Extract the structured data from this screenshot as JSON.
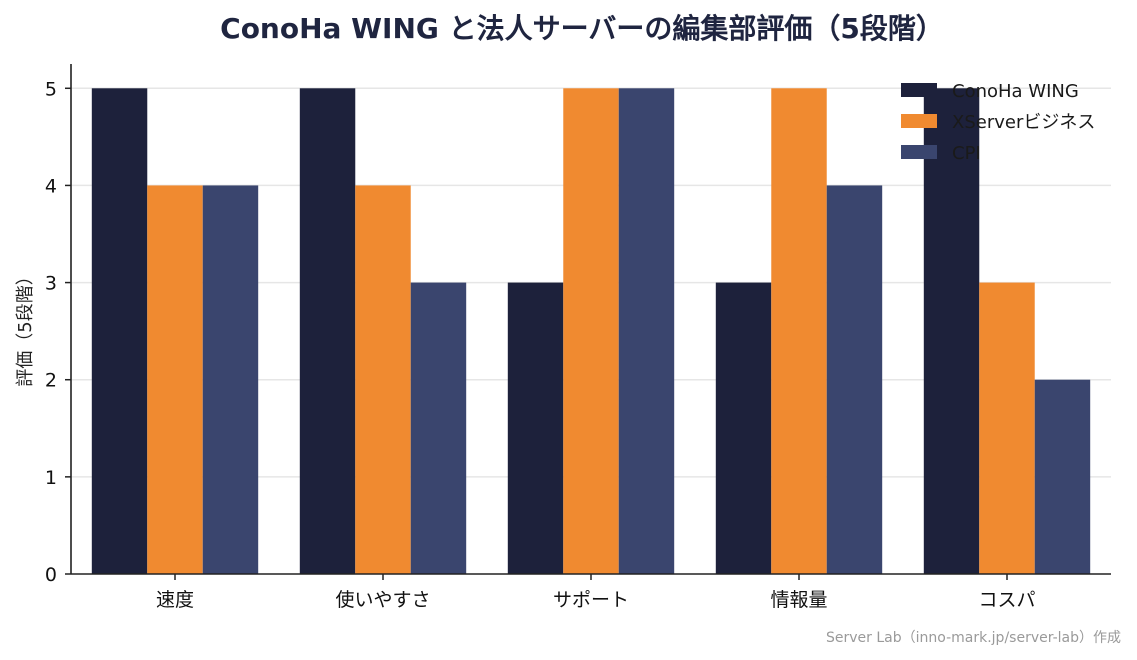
{
  "chart_data": {
    "type": "bar",
    "title": "ConoHa WING と法人サーバーの編集部評価（5段階）",
    "xlabel": "",
    "ylabel": "評価（5段階）",
    "categories": [
      "速度",
      "使いやすさ",
      "サポート",
      "情報量",
      "コスパ"
    ],
    "series": [
      {
        "name": "ConoHa WING",
        "color": "#1d213b",
        "values": [
          5,
          5,
          3,
          3,
          5
        ]
      },
      {
        "name": "XServerビジネス",
        "color": "#f08a30",
        "values": [
          4,
          4,
          5,
          5,
          3
        ]
      },
      {
        "name": "CPI",
        "color": "#3a456e",
        "values": [
          4,
          3,
          5,
          4,
          2
        ]
      }
    ],
    "ylim": [
      0,
      5.25
    ],
    "yticks": [
      0,
      1,
      2,
      3,
      4,
      5
    ],
    "grid": "horizontal",
    "legend": "top-right"
  },
  "footer": {
    "credit": "Server Lab（inno-mark.jp/server-lab）作成"
  }
}
